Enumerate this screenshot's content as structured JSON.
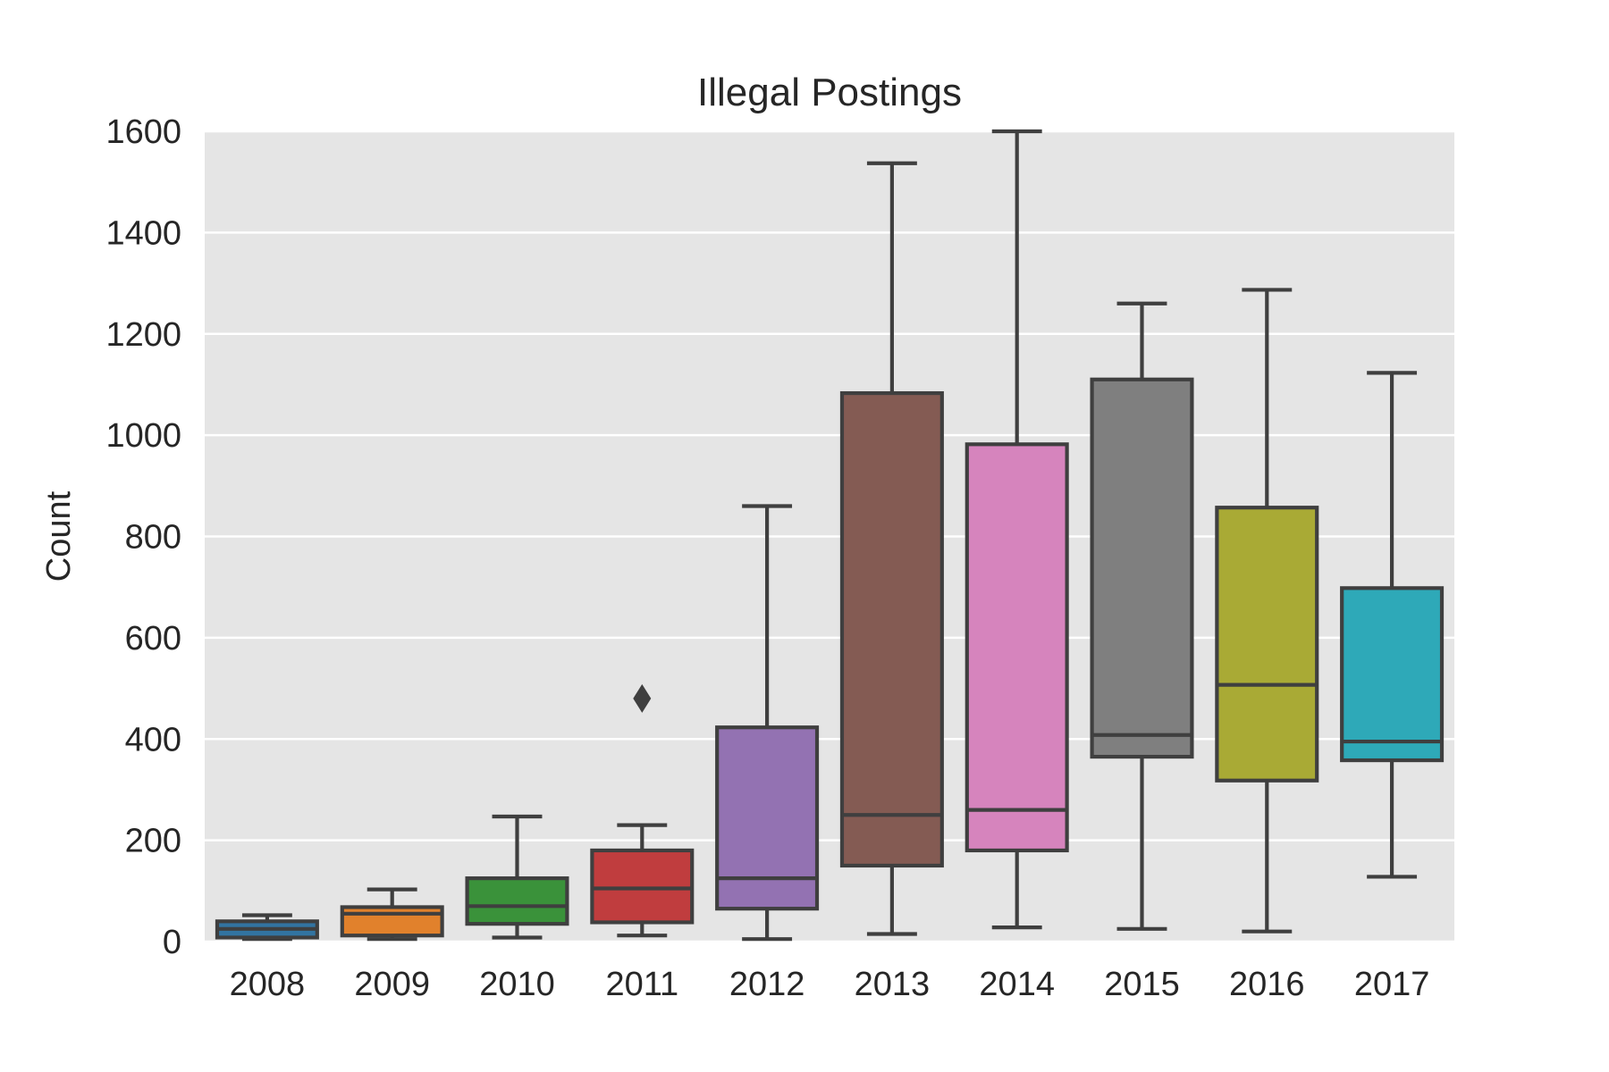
{
  "chart_data": {
    "type": "boxplot",
    "title": "Illegal Postings",
    "xlabel": "",
    "ylabel": "Count",
    "ylim": [
      0,
      1600
    ],
    "yticks": [
      "0",
      "200",
      "400",
      "600",
      "800",
      "1000",
      "1200",
      "1400",
      "1600"
    ],
    "ytick_values": [
      0,
      200,
      400,
      600,
      800,
      1000,
      1200,
      1400,
      1600
    ],
    "grid": true,
    "background": "#e5e5e5",
    "categories": [
      "2008",
      "2009",
      "2010",
      "2011",
      "2012",
      "2013",
      "2014",
      "2015",
      "2016",
      "2017"
    ],
    "boxes": [
      {
        "label": "2008",
        "min": 5,
        "q1": 8,
        "median": 25,
        "q3": 40,
        "max": 52,
        "color": "#3274a1",
        "outliers": []
      },
      {
        "label": "2009",
        "min": 5,
        "q1": 12,
        "median": 55,
        "q3": 68,
        "max": 103,
        "color": "#e1812c",
        "outliers": []
      },
      {
        "label": "2010",
        "min": 8,
        "q1": 35,
        "median": 70,
        "q3": 125,
        "max": 247,
        "color": "#3a923a",
        "outliers": []
      },
      {
        "label": "2011",
        "min": 12,
        "q1": 38,
        "median": 105,
        "q3": 180,
        "max": 230,
        "color": "#c03d3e",
        "outliers": [
          480
        ]
      },
      {
        "label": "2012",
        "min": 5,
        "q1": 65,
        "median": 125,
        "q3": 423,
        "max": 860,
        "color": "#9372b2",
        "outliers": []
      },
      {
        "label": "2013",
        "min": 15,
        "q1": 150,
        "median": 250,
        "q3": 1083,
        "max": 1537,
        "color": "#845b53",
        "outliers": []
      },
      {
        "label": "2014",
        "min": 28,
        "q1": 180,
        "median": 260,
        "q3": 982,
        "max": 1600,
        "color": "#d684bd",
        "outliers": []
      },
      {
        "label": "2015",
        "min": 25,
        "q1": 365,
        "median": 408,
        "q3": 1110,
        "max": 1260,
        "color": "#7f7f7f",
        "outliers": []
      },
      {
        "label": "2016",
        "min": 20,
        "q1": 318,
        "median": 507,
        "q3": 857,
        "max": 1287,
        "color": "#a9aa35",
        "outliers": []
      },
      {
        "label": "2017",
        "min": 128,
        "q1": 358,
        "median": 395,
        "q3": 698,
        "max": 1123,
        "color": "#2ea9b8",
        "outliers": []
      }
    ]
  }
}
